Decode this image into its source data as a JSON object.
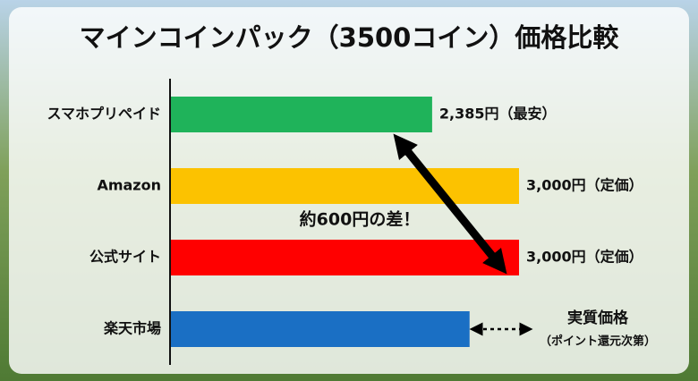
{
  "chart_data": {
    "type": "barh",
    "title": "マインコインパック（3500コイン）価格比較",
    "categories": [
      "スマホプリペイド",
      "Amazon",
      "公式サイト",
      "楽天市場"
    ],
    "values": [
      2385,
      3000,
      3000,
      2650
    ],
    "value_labels": [
      "2,385円（最安）",
      "3,000円（定価）",
      "3,000円（定価）",
      null
    ],
    "colors": [
      "#1fb35a",
      "#fcc200",
      "#ff0000",
      "#1a6fc4"
    ],
    "xlim": [
      530,
      3000
    ],
    "annotations": [
      "約600円の差！",
      "実質価格",
      "（ポイント還元次第）"
    ]
  }
}
